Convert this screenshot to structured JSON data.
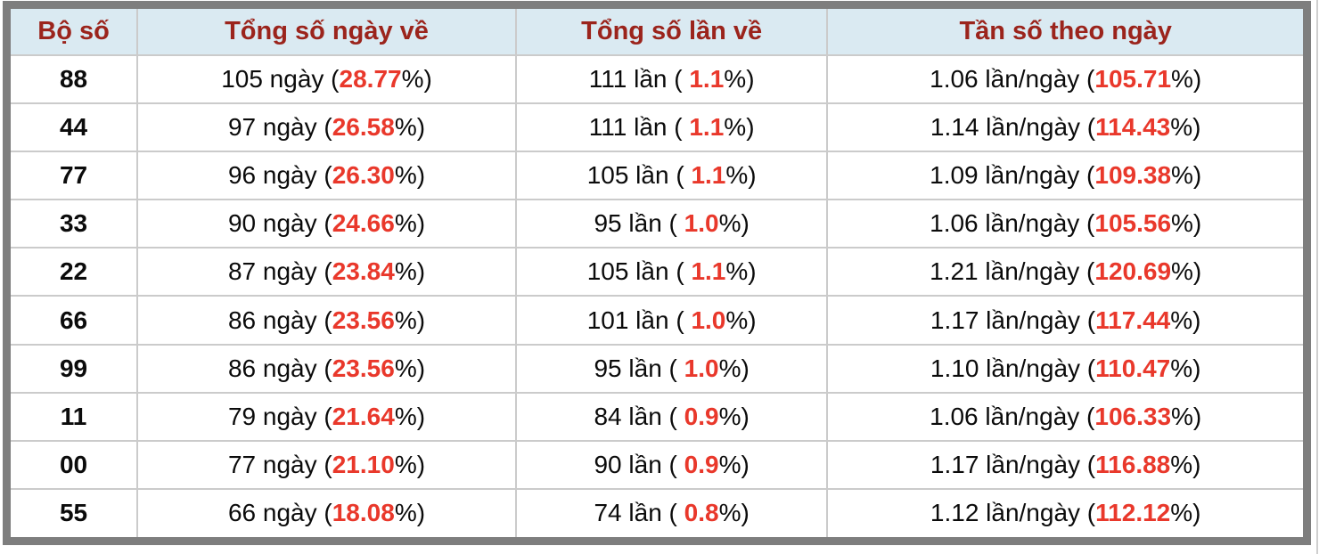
{
  "colors": {
    "header_bg": "#daeaf2",
    "header_text": "#9b241c",
    "highlight": "#e9382b",
    "frame_border": "#7e7e7e",
    "grid_line": "#cbcbcb"
  },
  "table": {
    "columns": [
      "Bộ số",
      "Tổng số ngày về",
      "Tổng số lần về",
      "Tần số theo ngày"
    ],
    "rows": [
      {
        "pair": "88",
        "days": {
          "prefix": "105 ngày (",
          "value": "28.77",
          "suffix": "%)"
        },
        "times": {
          "prefix": "111 lần ( ",
          "value": "1.1",
          "suffix": "%)"
        },
        "freq": {
          "prefix": "1.06 lần/ngày (",
          "value": "105.71",
          "suffix": "%)"
        }
      },
      {
        "pair": "44",
        "days": {
          "prefix": "97 ngày (",
          "value": "26.58",
          "suffix": "%)"
        },
        "times": {
          "prefix": "111 lần ( ",
          "value": "1.1",
          "suffix": "%)"
        },
        "freq": {
          "prefix": "1.14 lần/ngày (",
          "value": "114.43",
          "suffix": "%)"
        }
      },
      {
        "pair": "77",
        "days": {
          "prefix": "96 ngày (",
          "value": "26.30",
          "suffix": "%)"
        },
        "times": {
          "prefix": "105 lần ( ",
          "value": "1.1",
          "suffix": "%)"
        },
        "freq": {
          "prefix": "1.09 lần/ngày (",
          "value": "109.38",
          "suffix": "%)"
        }
      },
      {
        "pair": "33",
        "days": {
          "prefix": "90 ngày (",
          "value": "24.66",
          "suffix": "%)"
        },
        "times": {
          "prefix": "95 lần ( ",
          "value": "1.0",
          "suffix": "%)"
        },
        "freq": {
          "prefix": "1.06 lần/ngày (",
          "value": "105.56",
          "suffix": "%)"
        }
      },
      {
        "pair": "22",
        "days": {
          "prefix": "87 ngày (",
          "value": "23.84",
          "suffix": "%)"
        },
        "times": {
          "prefix": "105 lần ( ",
          "value": "1.1",
          "suffix": "%)"
        },
        "freq": {
          "prefix": "1.21 lần/ngày (",
          "value": "120.69",
          "suffix": "%)"
        }
      },
      {
        "pair": "66",
        "days": {
          "prefix": "86 ngày (",
          "value": "23.56",
          "suffix": "%)"
        },
        "times": {
          "prefix": "101 lần ( ",
          "value": "1.0",
          "suffix": "%)"
        },
        "freq": {
          "prefix": "1.17 lần/ngày (",
          "value": "117.44",
          "suffix": "%)"
        }
      },
      {
        "pair": "99",
        "days": {
          "prefix": "86 ngày (",
          "value": "23.56",
          "suffix": "%)"
        },
        "times": {
          "prefix": "95 lần ( ",
          "value": "1.0",
          "suffix": "%)"
        },
        "freq": {
          "prefix": "1.10 lần/ngày (",
          "value": "110.47",
          "suffix": "%)"
        }
      },
      {
        "pair": "11",
        "days": {
          "prefix": "79 ngày (",
          "value": "21.64",
          "suffix": "%)"
        },
        "times": {
          "prefix": "84 lần ( ",
          "value": "0.9",
          "suffix": "%)"
        },
        "freq": {
          "prefix": "1.06 lần/ngày (",
          "value": "106.33",
          "suffix": "%)"
        }
      },
      {
        "pair": "00",
        "days": {
          "prefix": "77 ngày (",
          "value": "21.10",
          "suffix": "%)"
        },
        "times": {
          "prefix": "90 lần ( ",
          "value": "0.9",
          "suffix": "%)"
        },
        "freq": {
          "prefix": "1.17 lần/ngày (",
          "value": "116.88",
          "suffix": "%)"
        }
      },
      {
        "pair": "55",
        "days": {
          "prefix": "66 ngày (",
          "value": "18.08",
          "suffix": "%)"
        },
        "times": {
          "prefix": "74 lần ( ",
          "value": "0.8",
          "suffix": "%)"
        },
        "freq": {
          "prefix": "1.12 lần/ngày (",
          "value": "112.12",
          "suffix": "%)"
        }
      }
    ]
  },
  "chart_data": {
    "type": "table",
    "columns": [
      "Bộ số",
      "Tổng số ngày về",
      "Tổng số lần về",
      "Tần số theo ngày"
    ],
    "rows": [
      {
        "bo_so": "88",
        "so_ngay_ve": 105,
        "ngay_pct": 28.77,
        "so_lan_ve": 111,
        "lan_pct": 1.1,
        "tan_so_lan_ngay": 1.06,
        "tan_so_pct": 105.71
      },
      {
        "bo_so": "44",
        "so_ngay_ve": 97,
        "ngay_pct": 26.58,
        "so_lan_ve": 111,
        "lan_pct": 1.1,
        "tan_so_lan_ngay": 1.14,
        "tan_so_pct": 114.43
      },
      {
        "bo_so": "77",
        "so_ngay_ve": 96,
        "ngay_pct": 26.3,
        "so_lan_ve": 105,
        "lan_pct": 1.1,
        "tan_so_lan_ngay": 1.09,
        "tan_so_pct": 109.38
      },
      {
        "bo_so": "33",
        "so_ngay_ve": 90,
        "ngay_pct": 24.66,
        "so_lan_ve": 95,
        "lan_pct": 1.0,
        "tan_so_lan_ngay": 1.06,
        "tan_so_pct": 105.56
      },
      {
        "bo_so": "22",
        "so_ngay_ve": 87,
        "ngay_pct": 23.84,
        "so_lan_ve": 105,
        "lan_pct": 1.1,
        "tan_so_lan_ngay": 1.21,
        "tan_so_pct": 120.69
      },
      {
        "bo_so": "66",
        "so_ngay_ve": 86,
        "ngay_pct": 23.56,
        "so_lan_ve": 101,
        "lan_pct": 1.0,
        "tan_so_lan_ngay": 1.17,
        "tan_so_pct": 117.44
      },
      {
        "bo_so": "99",
        "so_ngay_ve": 86,
        "ngay_pct": 23.56,
        "so_lan_ve": 95,
        "lan_pct": 1.0,
        "tan_so_lan_ngay": 1.1,
        "tan_so_pct": 110.47
      },
      {
        "bo_so": "11",
        "so_ngay_ve": 79,
        "ngay_pct": 21.64,
        "so_lan_ve": 84,
        "lan_pct": 0.9,
        "tan_so_lan_ngay": 1.06,
        "tan_so_pct": 106.33
      },
      {
        "bo_so": "00",
        "so_ngay_ve": 77,
        "ngay_pct": 21.1,
        "so_lan_ve": 90,
        "lan_pct": 0.9,
        "tan_so_lan_ngay": 1.17,
        "tan_so_pct": 116.88
      },
      {
        "bo_so": "55",
        "so_ngay_ve": 66,
        "ngay_pct": 18.08,
        "so_lan_ve": 74,
        "lan_pct": 0.8,
        "tan_so_lan_ngay": 1.12,
        "tan_so_pct": 112.12
      }
    ]
  }
}
